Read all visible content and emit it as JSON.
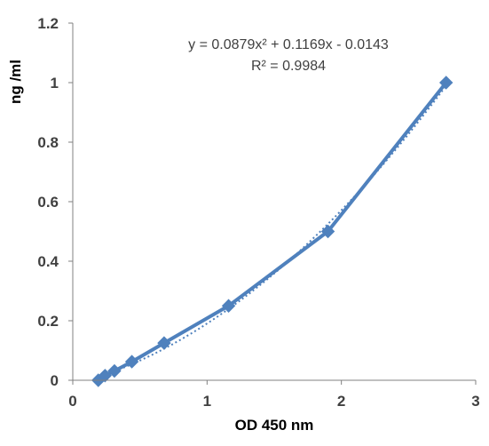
{
  "chart_data": {
    "type": "scatter",
    "xlabel": "OD 450 nm",
    "ylabel": "ng /ml",
    "xlim": [
      0,
      3
    ],
    "ylim": [
      0,
      1.2
    ],
    "x_ticks": [
      "0",
      "1",
      "2",
      "3"
    ],
    "y_ticks": [
      "0",
      "0.2",
      "0.4",
      "0.6",
      "0.8",
      "1",
      "1.2"
    ],
    "grid": false,
    "legend": "none",
    "series": [
      {
        "x": [
          0.19,
          0.24,
          0.31,
          0.44,
          0.68,
          1.16,
          1.9,
          2.78
        ],
        "y": [
          0.0,
          0.0156,
          0.03125,
          0.0625,
          0.125,
          0.25,
          0.5,
          1.0
        ],
        "marker": "diamond",
        "line": "solid",
        "color": "#4F81BD"
      }
    ],
    "trendline": {
      "type": "polynomial-2",
      "coefficients": [
        0.0879,
        0.1169,
        -0.0143
      ],
      "style": "dotted",
      "color": "#4F81BD"
    },
    "annotations": {
      "equation": "y = 0.0879x² + 0.1169x - 0.0143",
      "r_squared": "R² = 0.9984"
    }
  }
}
